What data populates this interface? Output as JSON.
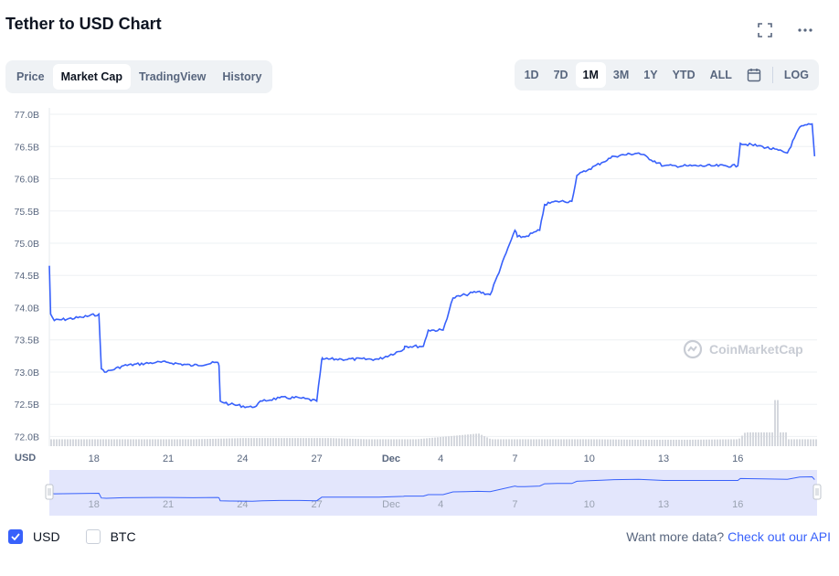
{
  "title": "Tether to USD Chart",
  "icons": {
    "fullscreen": "fullscreen-icon",
    "more": "more-icon",
    "calendar": "calendar-icon",
    "watermark": "coinmarketcap-logo-icon"
  },
  "view_tabs": [
    "Price",
    "Market Cap",
    "TradingView",
    "History"
  ],
  "active_view_tab": "Market Cap",
  "range_tabs": [
    "1D",
    "7D",
    "1M",
    "3M",
    "1Y",
    "YTD",
    "ALL"
  ],
  "active_range_tab": "1M",
  "log_label": "LOG",
  "watermark": "CoinMarketCap",
  "footer": {
    "usd_label": "USD",
    "btc_label": "BTC",
    "usd_checked": true,
    "btc_checked": false,
    "more_text": "Want more data?",
    "more_link": "Check out our API"
  },
  "colors": {
    "line": "#3861fb",
    "volume": "#d5d8de",
    "navigator_fill": "#e3e6fc",
    "accent": "#3861fb"
  },
  "chart_data": {
    "type": "line",
    "title": "Tether to USD Chart",
    "ylabel": "",
    "xlabel": "",
    "y_unit_label": "USD",
    "ylim": [
      71.85,
      77.1
    ],
    "y_ticks": [
      72.0,
      72.5,
      73.0,
      73.5,
      74.0,
      74.5,
      75.0,
      75.5,
      76.0,
      76.5,
      77.0
    ],
    "y_tick_labels": [
      "72.0B",
      "72.5B",
      "73.0B",
      "73.5B",
      "74.0B",
      "74.5B",
      "75.0B",
      "75.5B",
      "76.0B",
      "76.5B",
      "77.0B"
    ],
    "xlim": [
      16.2,
      47.2
    ],
    "x_ticks": [
      18,
      21,
      24,
      27,
      30,
      32,
      35,
      38,
      41,
      44,
      47
    ],
    "x_tick_labels": [
      "18",
      "21",
      "24",
      "27",
      "Dec",
      "4",
      "7",
      "10",
      "13",
      "16",
      ""
    ],
    "grid": true,
    "series": [
      {
        "name": "Market Cap",
        "unit": "billion USD",
        "x": [
          16.2,
          16.25,
          16.4,
          17.5,
          18.2,
          18.3,
          18.5,
          19.2,
          20.5,
          21.0,
          22.0,
          23.0,
          23.05,
          23.1,
          23.5,
          24.4,
          24.8,
          25.5,
          26.3,
          27.0,
          27.2,
          27.25,
          28.0,
          29.5,
          30.5,
          30.55,
          31.3,
          31.5,
          32.1,
          32.5,
          33.0,
          33.5,
          34.0,
          35.0,
          35.1,
          35.4,
          36.0,
          36.2,
          36.7,
          37.3,
          37.5,
          38.0,
          38.5,
          39.0,
          40.0,
          41.0,
          41.5,
          42.0,
          43.0,
          44.0,
          44.1,
          45.0,
          46.0,
          46.5,
          47.0,
          47.1
        ],
        "y": [
          74.65,
          73.9,
          73.8,
          73.85,
          73.9,
          73.05,
          73.0,
          73.1,
          73.15,
          73.15,
          73.1,
          73.15,
          73.1,
          72.55,
          72.5,
          72.45,
          72.55,
          72.6,
          72.6,
          72.55,
          73.2,
          73.2,
          73.2,
          73.2,
          73.35,
          73.4,
          73.4,
          73.65,
          73.65,
          74.15,
          74.2,
          74.25,
          74.2,
          75.2,
          75.1,
          75.1,
          75.2,
          75.6,
          75.65,
          75.65,
          76.05,
          76.15,
          76.25,
          76.35,
          76.4,
          76.2,
          76.2,
          76.2,
          76.2,
          76.2,
          76.55,
          76.5,
          76.4,
          76.8,
          76.85,
          76.35
        ]
      }
    ],
    "volume": {
      "note": "relative bar heights 0-1",
      "x": [
        16.5,
        18.0,
        20.0,
        22.0,
        24.0,
        26.0,
        27.5,
        29.0,
        31.0,
        32.5,
        33.5,
        34.0,
        35.0,
        36.0,
        38.0,
        40.0,
        42.0,
        44.0,
        45.5,
        46.0,
        46.5,
        47.0
      ],
      "values": [
        0.3,
        0.3,
        0.3,
        0.3,
        0.35,
        0.35,
        0.35,
        0.3,
        0.3,
        0.45,
        0.55,
        0.3,
        0.3,
        0.3,
        0.3,
        0.28,
        0.28,
        0.3,
        2.0,
        0.3,
        0.3,
        0.3
      ]
    }
  }
}
